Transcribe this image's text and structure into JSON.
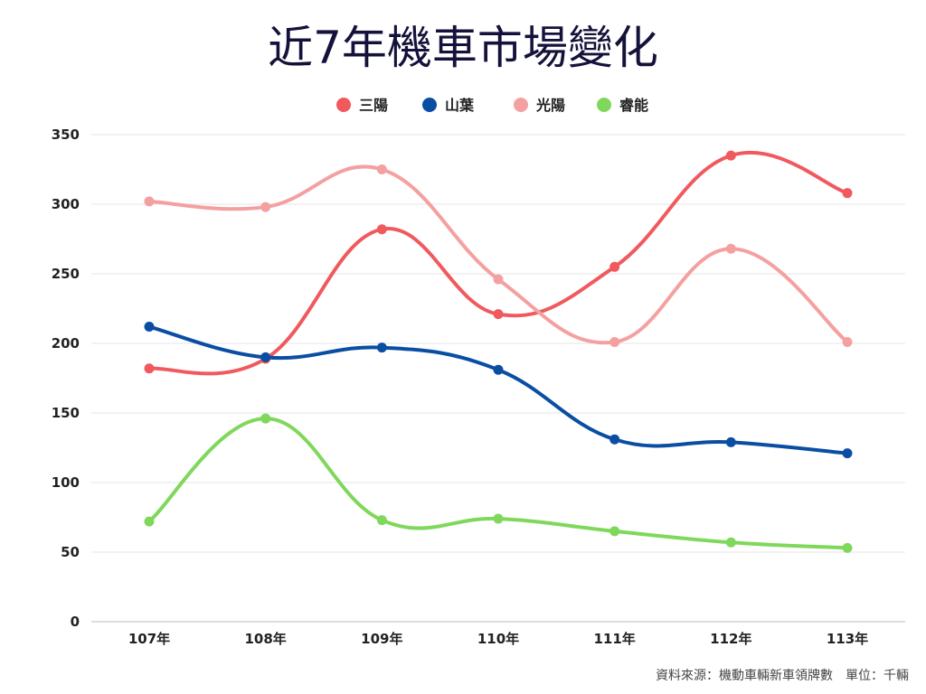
{
  "chart_data": {
    "type": "line",
    "title": "近7年機車市場變化",
    "categories": [
      "107年",
      "108年",
      "109年",
      "110年",
      "111年",
      "112年",
      "113年"
    ],
    "series": [
      {
        "name": "三陽",
        "color": "#f05a5e",
        "values": [
          182,
          189,
          282,
          221,
          255,
          335,
          308
        ]
      },
      {
        "name": "山葉",
        "color": "#0a4ea3",
        "values": [
          212,
          190,
          197,
          181,
          131,
          129,
          121
        ]
      },
      {
        "name": "光陽",
        "color": "#f5a0a0",
        "values": [
          302,
          298,
          325,
          246,
          201,
          268,
          201
        ]
      },
      {
        "name": "睿能",
        "color": "#7fd85c",
        "values": [
          72,
          146,
          73,
          74,
          65,
          57,
          53
        ]
      }
    ],
    "yticks": [
      0,
      50,
      100,
      150,
      200,
      250,
      300,
      350
    ],
    "ylim": [
      0,
      350
    ],
    "xlabel": "",
    "ylabel": "",
    "grid": true,
    "legend_position": "top-center",
    "source_note": "資料來源：機動車輛新車領牌數　單位：千輛"
  }
}
